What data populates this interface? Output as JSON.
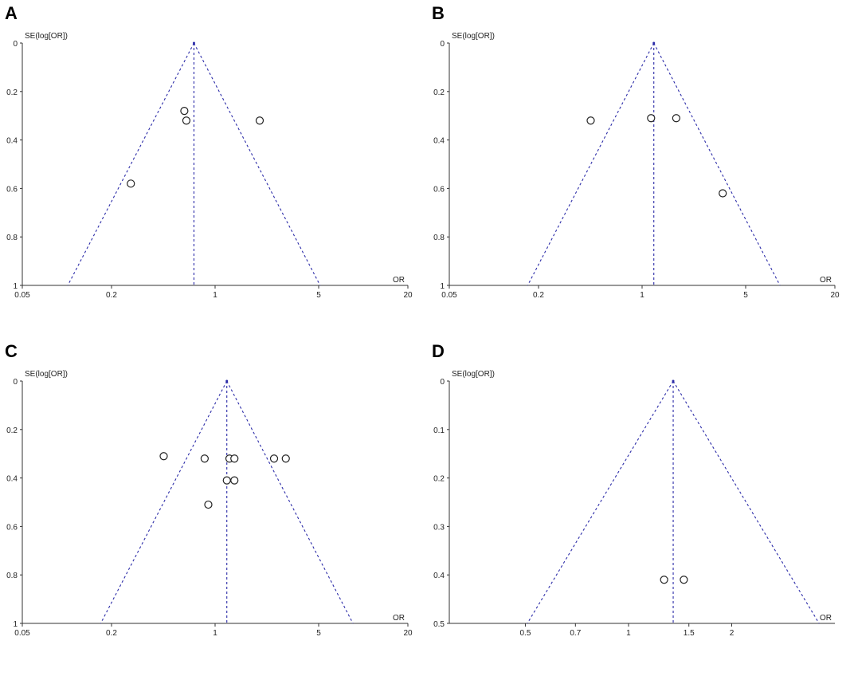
{
  "panels": [
    {
      "letter": "A",
      "ylabel": "SE(log[OR])",
      "xlabel": "OR"
    },
    {
      "letter": "B",
      "ylabel": "SE(log[OR])",
      "xlabel": "OR"
    },
    {
      "letter": "C",
      "ylabel": "SE(log[OR])",
      "xlabel": "OR"
    },
    {
      "letter": "D",
      "ylabel": "SE(log[OR])",
      "xlabel": "OR"
    }
  ],
  "chart_data": [
    {
      "type": "scatter",
      "title": "A",
      "xlabel": "OR",
      "ylabel": "SE(log[OR])",
      "x_scale": "log",
      "x_ticks": [
        0.05,
        0.2,
        1,
        5,
        20
      ],
      "x_tick_labels": [
        "0.05",
        "0.2",
        "1",
        "5",
        "20"
      ],
      "y_ticks": [
        0,
        0.2,
        0.4,
        0.6,
        0.8,
        1
      ],
      "y_tick_labels": [
        "0",
        "0.2",
        "0.4",
        "0.6",
        "0.8",
        "1"
      ],
      "xlim": [
        0.05,
        20
      ],
      "ylim": [
        0,
        1
      ],
      "y_inverted": true,
      "pooled_or": 0.72,
      "points": [
        {
          "or": 0.27,
          "se": 0.58
        },
        {
          "or": 0.62,
          "se": 0.28
        },
        {
          "or": 0.64,
          "se": 0.32
        },
        {
          "or": 2.0,
          "se": 0.32
        }
      ]
    },
    {
      "type": "scatter",
      "title": "B",
      "xlabel": "OR",
      "ylabel": "SE(log[OR])",
      "x_scale": "log",
      "x_ticks": [
        0.05,
        0.2,
        1,
        5,
        20
      ],
      "x_tick_labels": [
        "0.05",
        "0.2",
        "1",
        "5",
        "20"
      ],
      "y_ticks": [
        0,
        0.2,
        0.4,
        0.6,
        0.8,
        1
      ],
      "y_tick_labels": [
        "0",
        "0.2",
        "0.4",
        "0.6",
        "0.8",
        "1"
      ],
      "xlim": [
        0.05,
        20
      ],
      "ylim": [
        0,
        1
      ],
      "y_inverted": true,
      "pooled_or": 1.2,
      "points": [
        {
          "or": 0.45,
          "se": 0.32
        },
        {
          "or": 1.15,
          "se": 0.31
        },
        {
          "or": 1.7,
          "se": 0.31
        },
        {
          "or": 3.5,
          "se": 0.62
        }
      ]
    },
    {
      "type": "scatter",
      "title": "C",
      "xlabel": "OR",
      "ylabel": "SE(log[OR])",
      "x_scale": "log",
      "x_ticks": [
        0.05,
        0.2,
        1,
        5,
        20
      ],
      "x_tick_labels": [
        "0.05",
        "0.2",
        "1",
        "5",
        "20"
      ],
      "y_ticks": [
        0,
        0.2,
        0.4,
        0.6,
        0.8,
        1
      ],
      "y_tick_labels": [
        "0",
        "0.2",
        "0.4",
        "0.6",
        "0.8",
        "1"
      ],
      "xlim": [
        0.05,
        20
      ],
      "ylim": [
        0,
        1
      ],
      "y_inverted": true,
      "pooled_or": 1.2,
      "points": [
        {
          "or": 0.45,
          "se": 0.31
        },
        {
          "or": 0.85,
          "se": 0.32
        },
        {
          "or": 1.25,
          "se": 0.32
        },
        {
          "or": 1.35,
          "se": 0.32
        },
        {
          "or": 2.5,
          "se": 0.32
        },
        {
          "or": 3.0,
          "se": 0.32
        },
        {
          "or": 1.2,
          "se": 0.41
        },
        {
          "or": 1.35,
          "se": 0.41
        },
        {
          "or": 0.9,
          "se": 0.51
        }
      ]
    },
    {
      "type": "scatter",
      "title": "D",
      "xlabel": "OR",
      "ylabel": "SE(log[OR])",
      "x_scale": "log",
      "x_ticks": [
        0.5,
        0.7,
        1,
        1.5,
        2
      ],
      "x_tick_labels": [
        "0.5",
        "0.7",
        "1",
        "1.5",
        "2"
      ],
      "y_ticks": [
        0,
        0.1,
        0.2,
        0.3,
        0.4,
        0.5
      ],
      "y_tick_labels": [
        "0",
        "0.1",
        "0.2",
        "0.3",
        "0.4",
        "0.5"
      ],
      "xlim": [
        0.3,
        4.0
      ],
      "ylim": [
        0,
        0.5
      ],
      "y_inverted": true,
      "pooled_or": 1.35,
      "points": [
        {
          "or": 1.27,
          "se": 0.41
        },
        {
          "or": 1.45,
          "se": 0.41
        }
      ]
    }
  ]
}
